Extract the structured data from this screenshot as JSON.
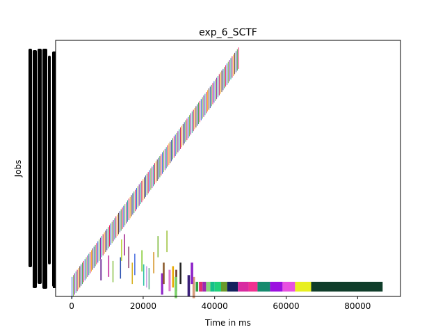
{
  "chart_data": {
    "type": "gantt",
    "title": "exp_6_SCTF",
    "xlabel": "Time in ms",
    "ylabel": "Jobs",
    "xlim": [
      -4500,
      92000
    ],
    "ylim": [
      -4,
      140
    ],
    "x_ticks": [
      "0",
      "20000",
      "40000",
      "60000",
      "80000"
    ],
    "x_tick_values": [
      0,
      20000,
      40000,
      60000,
      80000
    ],
    "ytick_labels": "illegible (black overlapping labels)",
    "grid": false,
    "legend": "none",
    "diagonal_jobs": {
      "note": "short jobs, one per row, start time increases with job index",
      "first": {
        "job": 1,
        "start": 0
      },
      "last": {
        "job": 130,
        "start": 46600
      },
      "duration_ms": 180,
      "count": 130
    },
    "scattered_jobs": [
      {
        "job": 11,
        "start": 8000,
        "end": 8400,
        "color": "#7b3fa0"
      },
      {
        "job": 13,
        "start": 10200,
        "end": 10500,
        "color": "#c0209a"
      },
      {
        "job": 10,
        "start": 11400,
        "end": 11700,
        "color": "#8bc34a"
      },
      {
        "job": 12,
        "start": 13500,
        "end": 13800,
        "color": "#2a4fb0"
      },
      {
        "job": 22,
        "start": 13800,
        "end": 14100,
        "color": "#b7d334"
      },
      {
        "job": 25,
        "start": 14600,
        "end": 14900,
        "color": "#a0208c"
      },
      {
        "job": 18,
        "start": 15800,
        "end": 16100,
        "color": "#8b3b6e"
      },
      {
        "job": 9,
        "start": 16800,
        "end": 17100,
        "color": "#d6b01e"
      },
      {
        "job": 14,
        "start": 17500,
        "end": 17800,
        "color": "#4a6fe0"
      },
      {
        "job": 16,
        "start": 19500,
        "end": 19800,
        "color": "#7fc92a"
      },
      {
        "job": 8,
        "start": 20000,
        "end": 20300,
        "color": "#2ac0a4"
      },
      {
        "job": 7,
        "start": 20800,
        "end": 21100,
        "color": "#c89de8"
      },
      {
        "job": 6,
        "start": 21500,
        "end": 21800,
        "color": "#5ab08a"
      },
      {
        "job": 15,
        "start": 22800,
        "end": 23100,
        "color": "#d39020"
      },
      {
        "job": 24,
        "start": 24000,
        "end": 24300,
        "color": "#7dba3a"
      },
      {
        "job": 27,
        "start": 26500,
        "end": 26800,
        "color": "#9bc038"
      },
      {
        "job": 3,
        "start": 25000,
        "end": 25600,
        "color": "#8e24c9"
      },
      {
        "job": 9,
        "start": 25500,
        "end": 26000,
        "color": "#8c5a2b"
      },
      {
        "job": 5,
        "start": 27100,
        "end": 27700,
        "color": "#e07ad0"
      },
      {
        "job": 7,
        "start": 28100,
        "end": 28600,
        "color": "#e8a800"
      },
      {
        "job": 5,
        "start": 29000,
        "end": 29500,
        "color": "#6a3b2b"
      },
      {
        "job": 9,
        "start": 30200,
        "end": 30700,
        "color": "#222222"
      },
      {
        "job": 1,
        "start": 28800,
        "end": 29500,
        "color": "#7cd16a"
      },
      {
        "job": 2,
        "start": 32400,
        "end": 33100,
        "color": "#3b1f7a"
      },
      {
        "job": 1,
        "start": 33800,
        "end": 34500,
        "color": "#d79b7b"
      },
      {
        "job": 9,
        "start": 33300,
        "end": 34000,
        "color": "#8e24c9"
      }
    ],
    "bottom_jobs": [
      {
        "job": 0,
        "start": 34700,
        "end": 35400,
        "color": "#30a040"
      },
      {
        "job": 0,
        "start": 35600,
        "end": 36600,
        "color": "#e03070"
      },
      {
        "job": 0,
        "start": 36600,
        "end": 37600,
        "color": "#9a2ab0"
      },
      {
        "job": 0,
        "start": 37600,
        "end": 38800,
        "color": "#8bd87a"
      },
      {
        "job": 0,
        "start": 38800,
        "end": 40000,
        "color": "#15c08a"
      },
      {
        "job": 0,
        "start": 40000,
        "end": 41800,
        "color": "#20d07a"
      },
      {
        "job": 0,
        "start": 41800,
        "end": 43500,
        "color": "#6a9a2a"
      },
      {
        "job": 0,
        "start": 43500,
        "end": 46500,
        "color": "#13215e"
      },
      {
        "job": 0,
        "start": 46500,
        "end": 49500,
        "color": "#d82aa0"
      },
      {
        "job": 0,
        "start": 49500,
        "end": 52000,
        "color": "#f03090"
      },
      {
        "job": 0,
        "start": 52000,
        "end": 55500,
        "color": "#168a6e"
      },
      {
        "job": 0,
        "start": 55500,
        "end": 59000,
        "color": "#9c10e0"
      },
      {
        "job": 0,
        "start": 59000,
        "end": 62500,
        "color": "#e850e0"
      },
      {
        "job": 0,
        "start": 62500,
        "end": 67000,
        "color": "#e8ef20"
      },
      {
        "job": 0,
        "start": 67000,
        "end": 87000,
        "color": "#0f3d2a"
      }
    ],
    "palette": [
      "#2a5bd7",
      "#7cb342",
      "#8e24aa",
      "#26a69a",
      "#c2185b",
      "#f9a825",
      "#5d4037",
      "#3949ab",
      "#43a047",
      "#e91e63"
    ]
  }
}
